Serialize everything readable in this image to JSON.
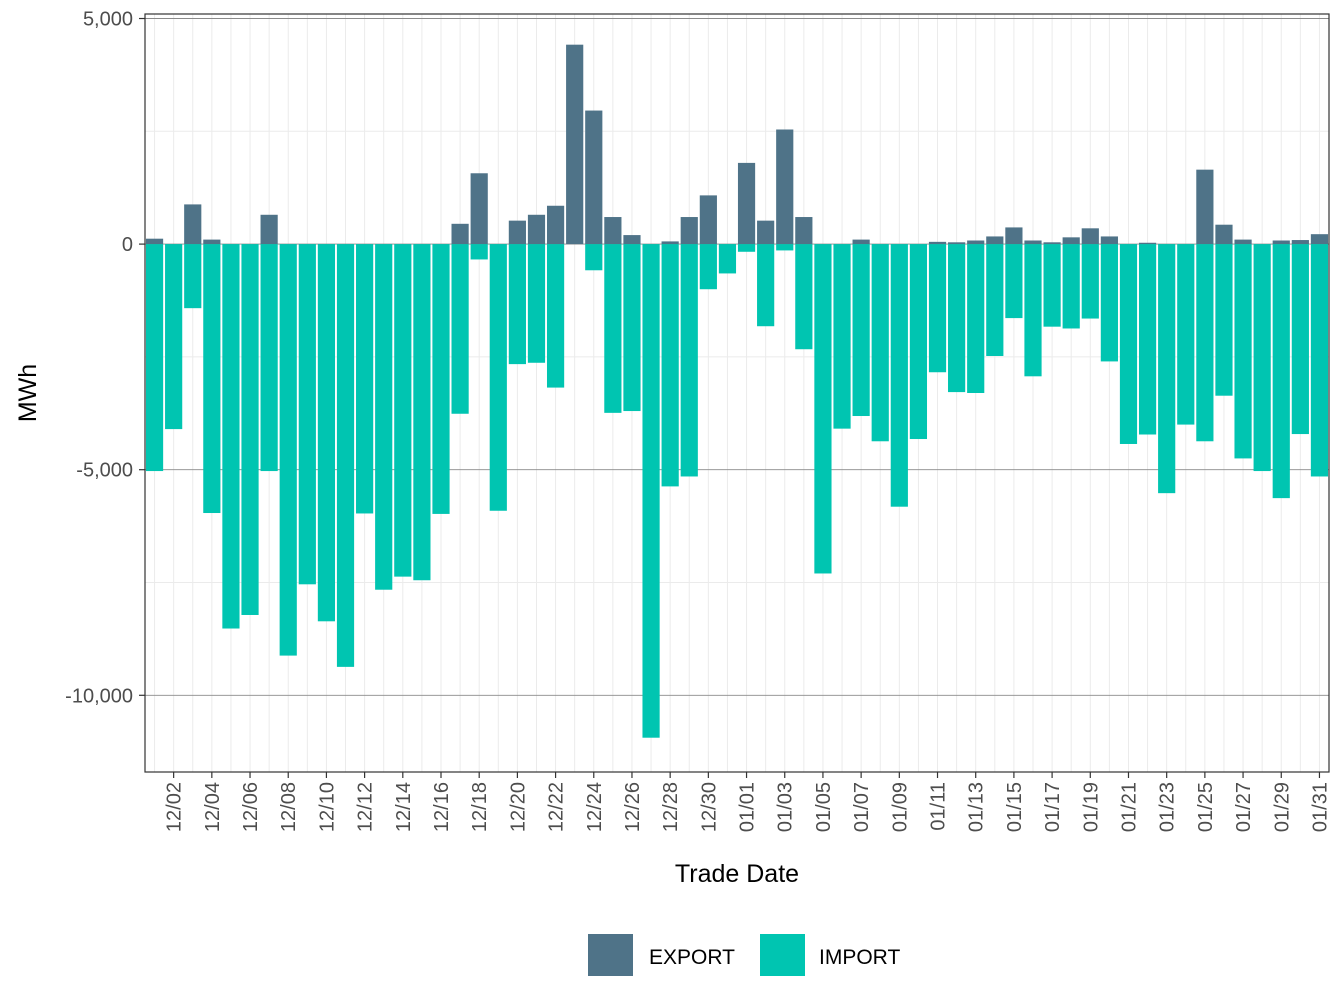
{
  "chart_data": {
    "type": "bar",
    "stacked": true,
    "title": "",
    "xlabel": "Trade Date",
    "ylabel": "MWh",
    "ylim": [
      -11700,
      5100
    ],
    "yticks": [
      5000,
      0,
      -5000,
      -10000
    ],
    "ytick_labels": [
      "5,000",
      "0",
      "-5,000",
      "-10,000"
    ],
    "grid": true,
    "legend_position": "bottom",
    "dates": [
      "12/01",
      "12/02",
      "12/03",
      "12/04",
      "12/05",
      "12/06",
      "12/07",
      "12/08",
      "12/09",
      "12/10",
      "12/11",
      "12/12",
      "12/13",
      "12/14",
      "12/15",
      "12/16",
      "12/17",
      "12/18",
      "12/19",
      "12/20",
      "12/21",
      "12/22",
      "12/23",
      "12/24",
      "12/25",
      "12/26",
      "12/27",
      "12/28",
      "12/29",
      "12/30",
      "12/31",
      "01/01",
      "01/02",
      "01/03",
      "01/04",
      "01/05",
      "01/06",
      "01/07",
      "01/08",
      "01/09",
      "01/10",
      "01/11",
      "01/12",
      "01/13",
      "01/14",
      "01/15",
      "01/16",
      "01/17",
      "01/18",
      "01/19",
      "01/20",
      "01/21",
      "01/22",
      "01/23",
      "01/24",
      "01/25",
      "01/26",
      "01/27",
      "01/28",
      "01/29",
      "01/30",
      "01/31"
    ],
    "xtick_labels": [
      "12/02",
      "12/04",
      "12/06",
      "12/08",
      "12/10",
      "12/12",
      "12/14",
      "12/16",
      "12/18",
      "12/20",
      "12/22",
      "12/24",
      "12/26",
      "12/28",
      "12/30",
      "01/01",
      "01/03",
      "01/05",
      "01/07",
      "01/09",
      "01/11",
      "01/13",
      "01/15",
      "01/17",
      "01/19",
      "01/21",
      "01/23",
      "01/25",
      "01/27",
      "01/29",
      "01/31"
    ],
    "series": [
      {
        "name": "EXPORT",
        "color": "#4f7388",
        "values": [
          120,
          0,
          880,
          100,
          0,
          0,
          650,
          0,
          0,
          0,
          0,
          0,
          0,
          0,
          0,
          0,
          450,
          1570,
          0,
          520,
          650,
          850,
          4420,
          2960,
          600,
          200,
          0,
          60,
          600,
          1080,
          0,
          1800,
          520,
          2540,
          600,
          0,
          0,
          100,
          0,
          0,
          0,
          50,
          40,
          80,
          170,
          370,
          80,
          40,
          150,
          350,
          170,
          0,
          30,
          0,
          0,
          1650,
          430,
          100,
          0,
          80,
          90,
          220
        ]
      },
      {
        "name": "IMPORT",
        "color": "#00c5b1",
        "values": [
          -5030,
          -4100,
          -1420,
          -5960,
          -8520,
          -8220,
          -5030,
          -9120,
          -7540,
          -8360,
          -9370,
          -5970,
          -7660,
          -7370,
          -7450,
          -5980,
          -3760,
          -340,
          -5910,
          -2660,
          -2630,
          -3180,
          0,
          -580,
          -3740,
          -3700,
          -10940,
          -5370,
          -5150,
          -1000,
          -650,
          -170,
          -1820,
          -140,
          -2330,
          -7300,
          -4090,
          -3810,
          -4370,
          -5820,
          -4320,
          -2840,
          -3280,
          -3300,
          -2480,
          -1640,
          -2930,
          -1830,
          -1870,
          -1650,
          -2600,
          -4430,
          -4220,
          -5520,
          -4000,
          -4370,
          -3360,
          -4750,
          -5030,
          -5630,
          -4210,
          -5150
        ]
      }
    ]
  }
}
